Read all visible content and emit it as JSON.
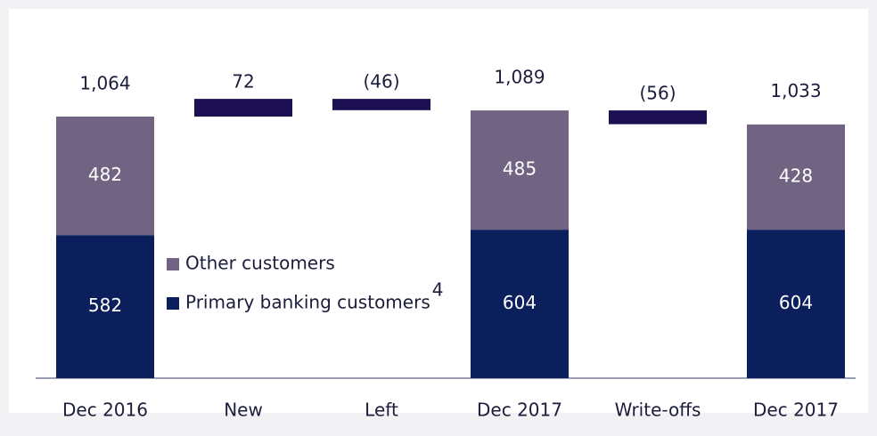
{
  "chart_data": {
    "type": "waterfall",
    "categories": [
      "Dec 2016",
      "New",
      "Left",
      "Dec 2017",
      "Write-offs",
      "Dec 2017"
    ],
    "series": [
      {
        "name": "Primary banking customers",
        "color": "#0b1f5c",
        "values": [
          582,
          null,
          null,
          604,
          null,
          604
        ]
      },
      {
        "name": "Other customers",
        "color": "#716483",
        "values": [
          482,
          null,
          null,
          485,
          null,
          428
        ]
      }
    ],
    "legend_footnote": "4",
    "changes": {
      "color": "#1c0f52",
      "values": [
        null,
        72,
        -46,
        null,
        -56,
        null
      ],
      "value_labels": [
        null,
        "72",
        "(46)",
        null,
        "(56)",
        null
      ]
    },
    "totals": [
      1064,
      null,
      null,
      1089,
      null,
      1033
    ],
    "total_labels": [
      "1,064",
      null,
      null,
      "1,089",
      null,
      "1,033"
    ]
  }
}
